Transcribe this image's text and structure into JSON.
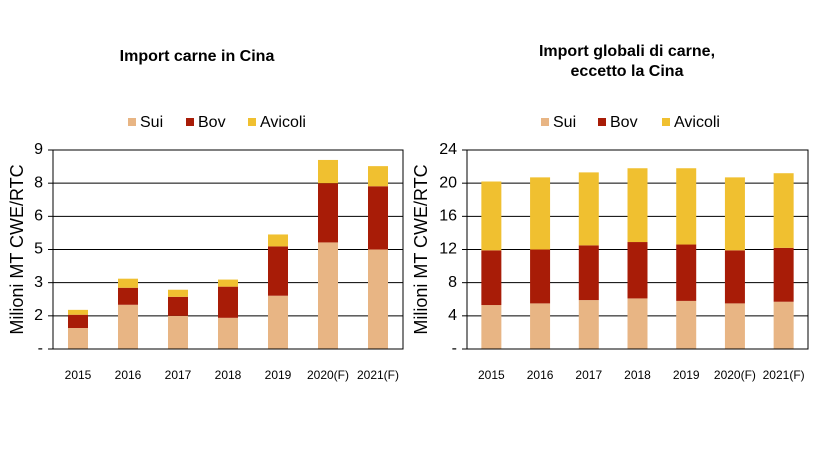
{
  "chart_data": [
    {
      "type": "stacked_bar",
      "title": [
        "Import carne in Cina"
      ],
      "ylabel": "Milioni MT CWE/RTC",
      "categories": [
        "2015",
        "2016",
        "2017",
        "2018",
        "2019",
        "2020(F)",
        "2021(F)"
      ],
      "series": [
        {
          "name": "Sui",
          "color": "#e8b584",
          "values": [
            0.95,
            2.0,
            1.5,
            1.41,
            2.41,
            4.82,
            4.5
          ]
        },
        {
          "name": "Bov",
          "color": "#a81c07",
          "values": [
            0.6,
            0.77,
            0.86,
            1.41,
            2.23,
            2.68,
            2.86
          ]
        },
        {
          "name": "Avicoli",
          "color": "#f0c030",
          "values": [
            0.22,
            0.41,
            0.32,
            0.32,
            0.54,
            1.05,
            0.91
          ]
        }
      ],
      "ylim": [
        0,
        9
      ],
      "yticks": [
        {
          "value": 0,
          "label": "-"
        },
        {
          "value": 1.5,
          "label": "2"
        },
        {
          "value": 3,
          "label": "3"
        },
        {
          "value": 4.5,
          "label": "5"
        },
        {
          "value": 6,
          "label": "6"
        },
        {
          "value": 7.5,
          "label": "8"
        },
        9
      ],
      "grid": true
    },
    {
      "type": "stacked_bar",
      "title": [
        "Import globali di carne,",
        "eccetto la Cina"
      ],
      "ylabel": "Milioni MT CWE/RTC",
      "categories": [
        "2015",
        "2016",
        "2017",
        "2018",
        "2019",
        "2020(F)",
        "2021(F)"
      ],
      "series": [
        {
          "name": "Sui",
          "color": "#e8b584",
          "values": [
            5.3,
            5.5,
            5.9,
            6.1,
            5.8,
            5.5,
            5.7
          ]
        },
        {
          "name": "Bov",
          "color": "#a81c07",
          "values": [
            6.6,
            6.5,
            6.6,
            6.8,
            6.8,
            6.4,
            6.5
          ]
        },
        {
          "name": "Avicoli",
          "color": "#f0c030",
          "values": [
            8.3,
            8.7,
            8.8,
            8.9,
            9.2,
            8.8,
            9.0
          ]
        }
      ],
      "ylim": [
        0,
        24
      ],
      "yticks": [
        {
          "value": 0,
          "label": "-"
        },
        4,
        8,
        12,
        16,
        20,
        24
      ],
      "grid": true
    }
  ]
}
